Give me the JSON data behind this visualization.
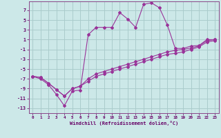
{
  "background_color": "#cce8e8",
  "grid_color": "#aacccc",
  "line_color": "#993399",
  "xlim": [
    -0.5,
    23.5
  ],
  "ylim": [
    -14.0,
    8.8
  ],
  "yticks": [
    7,
    5,
    3,
    1,
    -1,
    -3,
    -5,
    -7,
    -9,
    -11,
    -13
  ],
  "xticks": [
    0,
    1,
    2,
    3,
    4,
    5,
    6,
    7,
    8,
    9,
    10,
    11,
    12,
    13,
    14,
    15,
    16,
    17,
    18,
    19,
    20,
    21,
    22,
    23
  ],
  "xlabel": "Windchill (Refroidissement éolien,°C)",
  "curve1_x": [
    0,
    1,
    2,
    3,
    4,
    5,
    6,
    7,
    8,
    9,
    10,
    11,
    12,
    13,
    14,
    15,
    16,
    17,
    18,
    19,
    20,
    21,
    22,
    23
  ],
  "curve1_y": [
    -6.5,
    -7.0,
    -8.2,
    -10.2,
    -12.5,
    -9.5,
    -9.3,
    2.0,
    3.5,
    3.5,
    3.5,
    6.5,
    5.2,
    3.5,
    8.2,
    8.5,
    7.5,
    4.0,
    -0.8,
    -0.8,
    -0.3,
    -0.2,
    1.0,
    1.0
  ],
  "curve2_x": [
    0,
    1,
    2,
    3,
    4,
    5,
    6,
    7,
    8,
    9,
    10,
    11,
    12,
    13,
    14,
    15,
    16,
    17,
    18,
    19,
    20,
    21,
    22,
    23
  ],
  "curve2_y": [
    -6.5,
    -6.7,
    -7.9,
    -9.2,
    -10.5,
    -9.0,
    -8.5,
    -7.0,
    -6.0,
    -5.5,
    -5.0,
    -4.5,
    -4.0,
    -3.5,
    -3.0,
    -2.5,
    -2.0,
    -1.5,
    -1.2,
    -1.0,
    -0.7,
    -0.3,
    0.8,
    1.0
  ],
  "curve3_x": [
    0,
    1,
    2,
    3,
    4,
    5,
    6,
    7,
    8,
    9,
    10,
    11,
    12,
    13,
    14,
    15,
    16,
    17,
    18,
    19,
    20,
    21,
    22,
    23
  ],
  "curve3_y": [
    -6.5,
    -6.7,
    -7.9,
    -9.2,
    -10.5,
    -9.0,
    -8.5,
    -7.5,
    -6.5,
    -6.0,
    -5.5,
    -5.0,
    -4.5,
    -4.0,
    -3.5,
    -3.0,
    -2.5,
    -2.0,
    -1.8,
    -1.5,
    -1.0,
    -0.5,
    0.5,
    0.8
  ]
}
